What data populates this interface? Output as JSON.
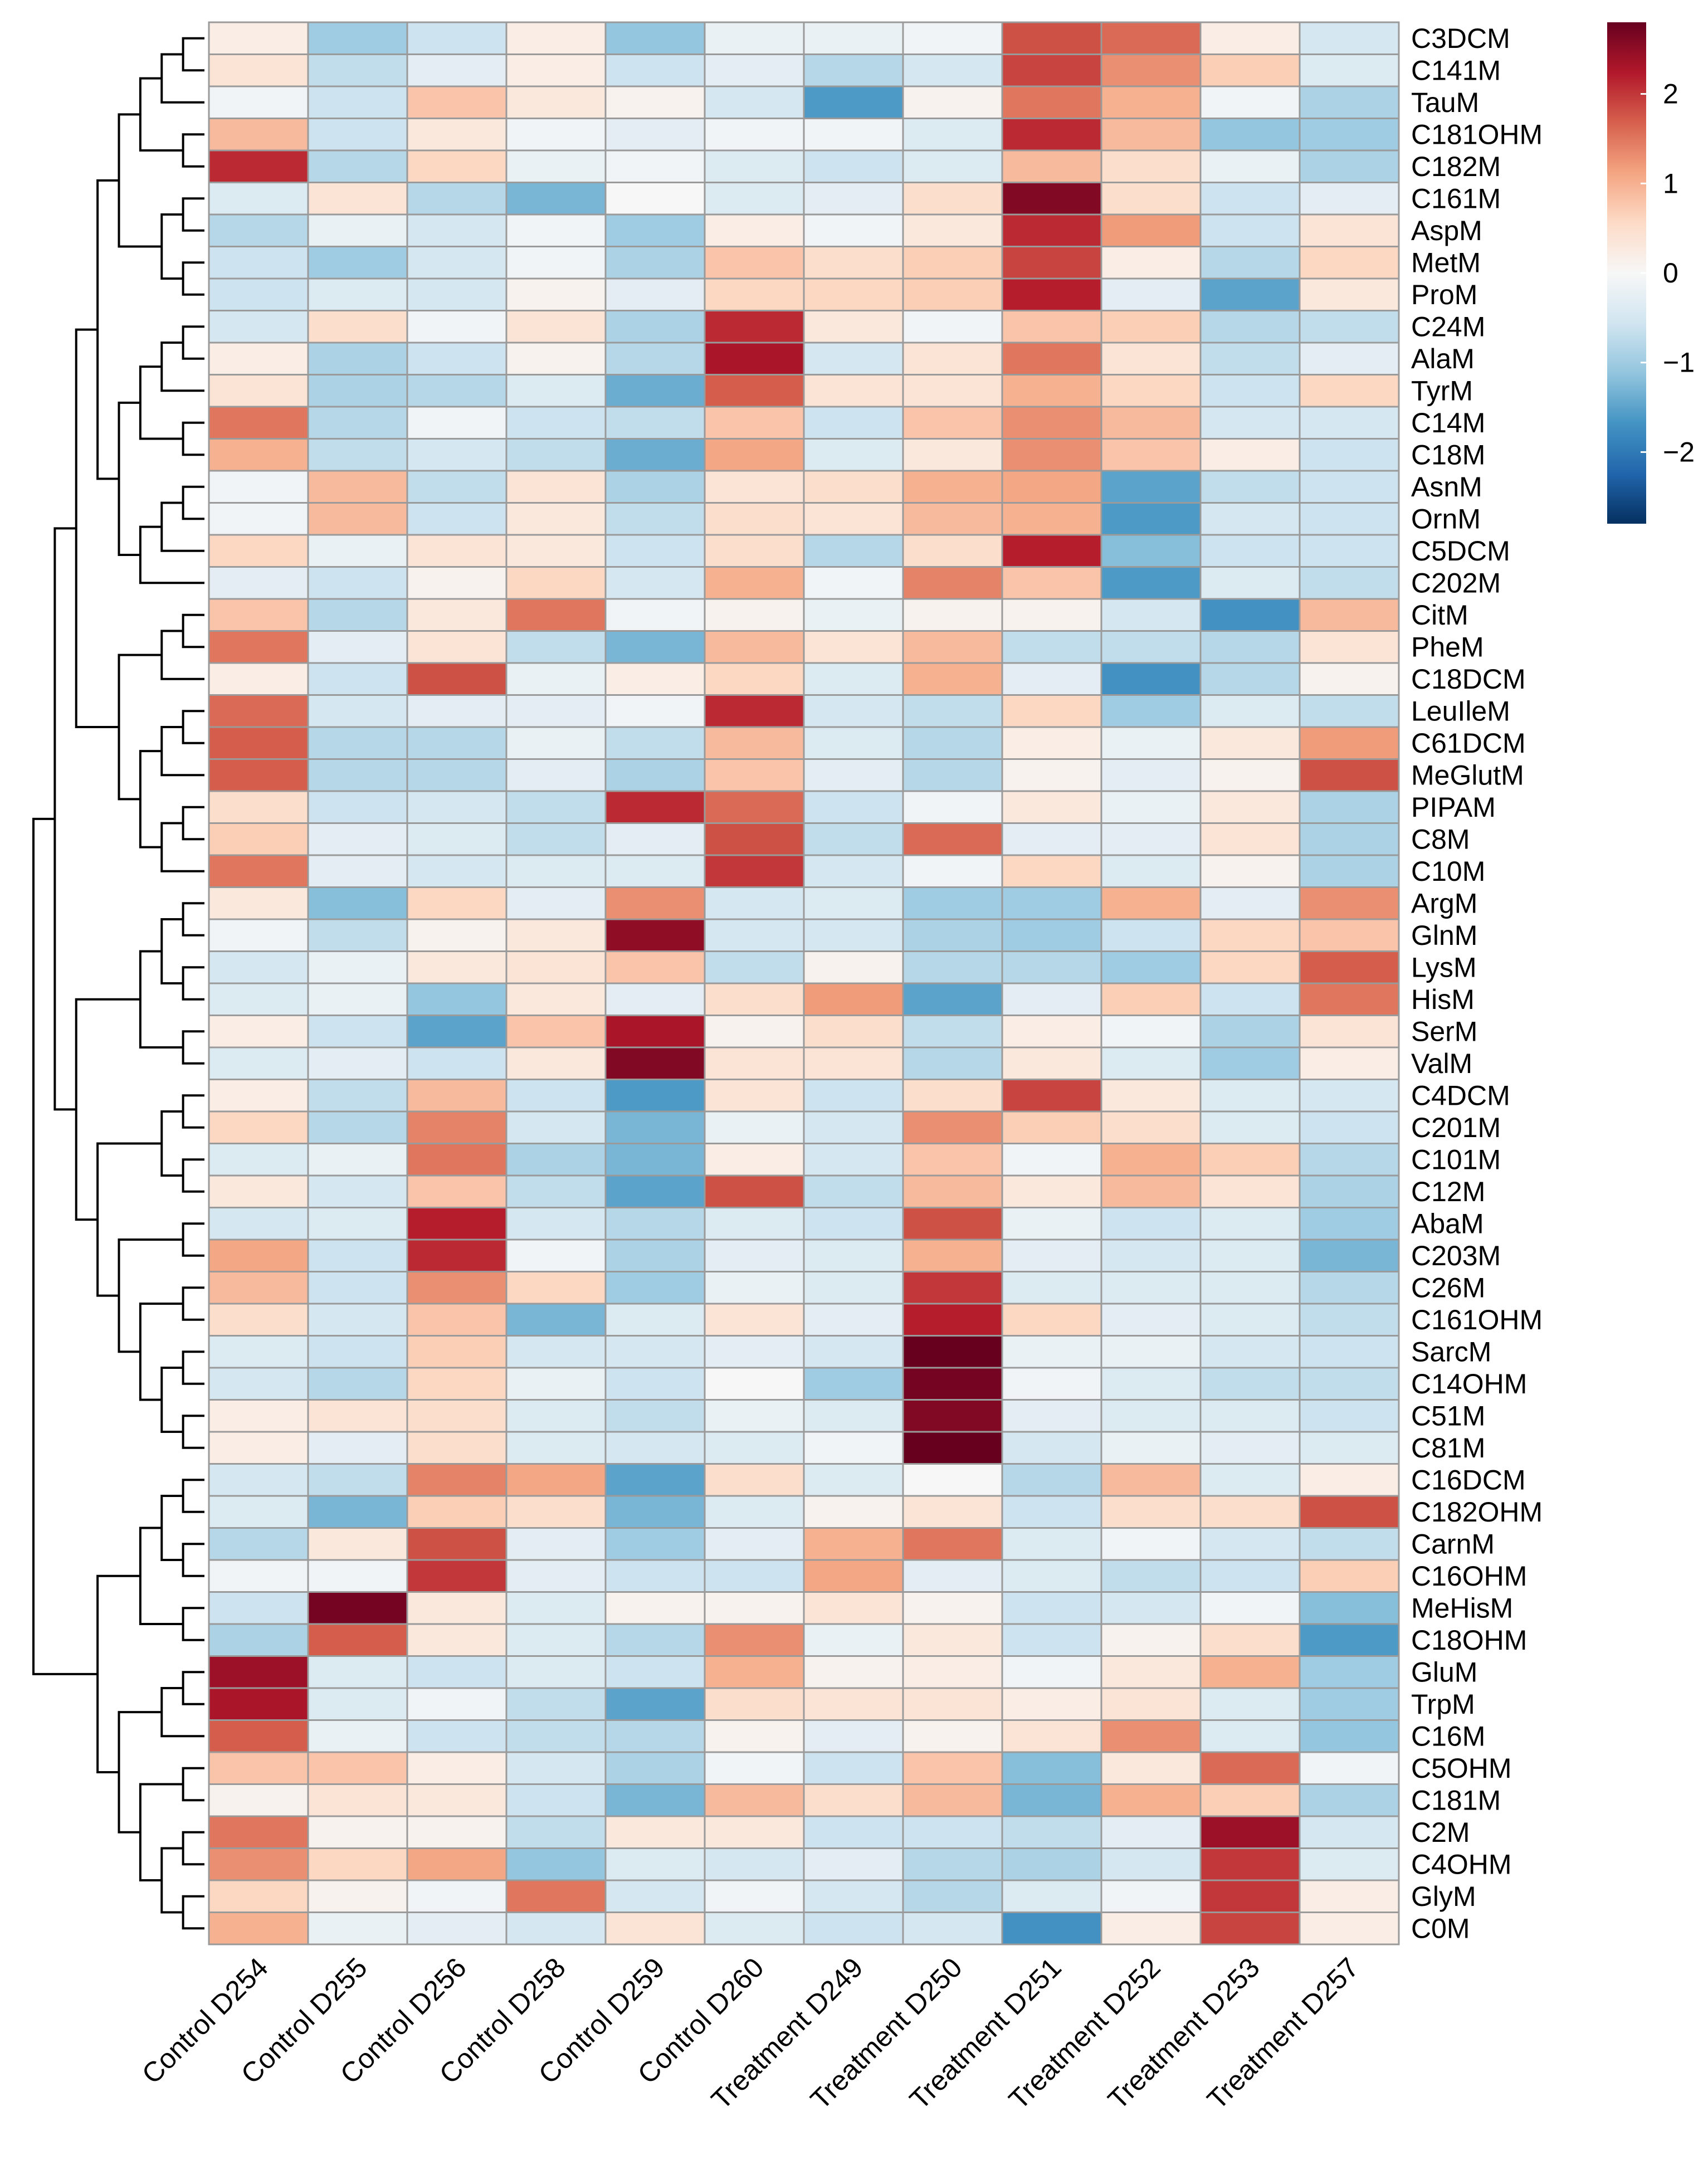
{
  "chart_data": {
    "type": "heatmap",
    "title": "",
    "xlabel": "",
    "ylabel": "",
    "columns": [
      "Control D254",
      "Control D255",
      "Control D256",
      "Control D258",
      "Control D259",
      "Control D260",
      "Treatment D249",
      "Treatment D250",
      "Treatment D251",
      "Treatment D252",
      "Treatment D253",
      "Treatment D257"
    ],
    "rows": [
      "C3DCM",
      "C141M",
      "TauM",
      "C181OHM",
      "C182M",
      "C161M",
      "AspM",
      "MetM",
      "ProM",
      "C24M",
      "AlaM",
      "TyrM",
      "C14M",
      "C18M",
      "AsnM",
      "OrnM",
      "C5DCM",
      "C202M",
      "CitM",
      "PheM",
      "C18DCM",
      "LeuIleM",
      "C61DCM",
      "MeGlutM",
      "PIPAM",
      "C8M",
      "C10M",
      "ArgM",
      "GlnM",
      "LysM",
      "HisM",
      "SerM",
      "ValM",
      "C4DCM",
      "C201M",
      "C101M",
      "C12M",
      "AbaM",
      "C203M",
      "C26M",
      "C161OHM",
      "SarcM",
      "C14OHM",
      "C51M",
      "C81M",
      "C16DCM",
      "C182OHM",
      "CarnM",
      "C16OHM",
      "MeHisM",
      "C18OHM",
      "GluM",
      "TrpM",
      "C16M",
      "C5OHM",
      "C181M",
      "C2M",
      "C4OHM",
      "GlyM",
      "C0M"
    ],
    "values": [
      [
        0.2,
        -1.0,
        -0.6,
        0.2,
        -1.1,
        -0.2,
        -0.2,
        -0.1,
        1.8,
        1.6,
        0.2,
        -0.5
      ],
      [
        0.4,
        -0.7,
        -0.3,
        0.2,
        -0.6,
        -0.3,
        -0.8,
        -0.5,
        1.9,
        1.3,
        0.7,
        -0.4
      ],
      [
        -0.1,
        -0.6,
        0.8,
        0.3,
        0.1,
        -0.5,
        -1.6,
        0.1,
        1.5,
        1.0,
        -0.1,
        -0.9
      ],
      [
        0.9,
        -0.6,
        0.3,
        -0.1,
        -0.3,
        -0.1,
        -0.1,
        -0.4,
        2.1,
        0.9,
        -1.1,
        -1.0
      ],
      [
        2.1,
        -0.8,
        0.6,
        -0.2,
        -0.1,
        -0.4,
        -0.6,
        -0.4,
        0.9,
        0.5,
        -0.2,
        -0.9
      ],
      [
        -0.4,
        0.4,
        -0.8,
        -1.3,
        0.0,
        -0.4,
        -0.3,
        0.5,
        2.6,
        0.5,
        -0.6,
        -0.3
      ],
      [
        -0.8,
        -0.2,
        -0.5,
        -0.1,
        -1.0,
        0.2,
        -0.1,
        0.3,
        2.1,
        1.2,
        -0.6,
        0.4
      ],
      [
        -0.6,
        -1.0,
        -0.5,
        -0.1,
        -0.9,
        0.8,
        0.5,
        0.7,
        1.9,
        0.2,
        -0.8,
        0.6
      ],
      [
        -0.6,
        -0.4,
        -0.5,
        0.1,
        -0.3,
        0.6,
        0.6,
        0.7,
        2.2,
        -0.3,
        -1.5,
        0.3
      ],
      [
        -0.5,
        0.5,
        -0.1,
        0.4,
        -0.9,
        2.1,
        0.3,
        -0.1,
        0.8,
        0.7,
        -0.8,
        -0.7
      ],
      [
        0.2,
        -0.9,
        -0.6,
        0.1,
        -0.8,
        2.3,
        -0.5,
        0.4,
        1.5,
        0.4,
        -0.7,
        -0.3
      ],
      [
        0.4,
        -0.9,
        -0.8,
        -0.4,
        -1.4,
        1.7,
        0.4,
        0.4,
        1.0,
        0.6,
        -0.6,
        0.6
      ],
      [
        1.5,
        -0.8,
        -0.1,
        -0.6,
        -0.7,
        0.8,
        -0.6,
        0.8,
        1.3,
        0.9,
        -0.5,
        -0.5
      ],
      [
        1.0,
        -0.7,
        -0.5,
        -0.7,
        -1.4,
        1.1,
        -0.4,
        0.3,
        1.3,
        0.8,
        0.2,
        -0.6
      ],
      [
        -0.1,
        0.9,
        -0.7,
        0.4,
        -0.9,
        0.4,
        0.5,
        1.0,
        1.1,
        -1.5,
        -0.7,
        -0.6
      ],
      [
        -0.1,
        0.9,
        -0.6,
        0.3,
        -0.7,
        0.5,
        0.4,
        0.9,
        1.0,
        -1.6,
        -0.5,
        -0.6
      ],
      [
        0.6,
        -0.2,
        0.4,
        0.3,
        -0.6,
        0.5,
        -0.8,
        0.5,
        2.2,
        -1.2,
        -0.6,
        -0.6
      ],
      [
        -0.3,
        -0.6,
        0.1,
        0.6,
        -0.5,
        1.0,
        -0.1,
        1.4,
        0.8,
        -1.6,
        -0.4,
        -0.7
      ],
      [
        0.8,
        -0.8,
        0.3,
        1.5,
        -0.1,
        0.1,
        -0.2,
        0.1,
        0.1,
        -0.5,
        -1.7,
        0.9
      ],
      [
        1.5,
        -0.3,
        0.4,
        -0.7,
        -1.3,
        0.9,
        0.4,
        0.9,
        -0.7,
        -0.7,
        -0.8,
        0.4
      ],
      [
        0.2,
        -0.6,
        1.8,
        -0.2,
        0.2,
        0.6,
        -0.4,
        1.0,
        -0.3,
        -1.7,
        -0.8,
        0.1
      ],
      [
        1.6,
        -0.5,
        -0.3,
        -0.3,
        -0.1,
        2.1,
        -0.5,
        -0.7,
        0.6,
        -1.0,
        -0.4,
        -0.7
      ],
      [
        1.7,
        -0.8,
        -0.8,
        -0.2,
        -0.7,
        0.9,
        -0.4,
        -0.8,
        0.2,
        -0.2,
        0.3,
        1.2
      ],
      [
        1.7,
        -0.8,
        -0.8,
        -0.3,
        -0.9,
        0.8,
        -0.3,
        -0.8,
        0.1,
        -0.3,
        0.1,
        1.8
      ],
      [
        0.5,
        -0.6,
        -0.5,
        -0.7,
        2.1,
        1.6,
        -0.6,
        -0.1,
        0.3,
        -0.2,
        0.3,
        -0.9
      ],
      [
        0.7,
        -0.3,
        -0.4,
        -0.7,
        -0.3,
        1.8,
        -0.7,
        1.6,
        -0.3,
        -0.3,
        0.4,
        -0.9
      ],
      [
        1.5,
        -0.3,
        -0.5,
        -0.4,
        -0.4,
        2.0,
        -0.5,
        -0.1,
        0.6,
        -0.4,
        0.1,
        -0.9
      ],
      [
        0.3,
        -1.2,
        0.6,
        -0.3,
        1.3,
        -0.5,
        -0.4,
        -1.0,
        -1.0,
        1.0,
        -0.3,
        1.3
      ],
      [
        -0.1,
        -0.7,
        0.1,
        0.3,
        2.5,
        -0.5,
        -0.5,
        -0.9,
        -1.0,
        -0.6,
        0.6,
        0.8
      ],
      [
        -0.5,
        -0.2,
        0.3,
        0.4,
        0.8,
        -0.7,
        0.1,
        -0.8,
        -0.8,
        -1.0,
        0.6,
        1.7
      ],
      [
        -0.4,
        -0.2,
        -1.1,
        0.3,
        -0.3,
        0.5,
        1.2,
        -1.5,
        -0.3,
        0.7,
        -0.6,
        1.5
      ],
      [
        0.2,
        -0.6,
        -1.5,
        0.8,
        2.3,
        0.1,
        0.5,
        -0.7,
        0.2,
        -0.1,
        -0.9,
        0.4
      ],
      [
        -0.4,
        -0.3,
        -0.6,
        0.3,
        2.6,
        0.4,
        0.4,
        -0.8,
        0.3,
        -0.4,
        -1.0,
        0.2
      ],
      [
        0.2,
        -0.7,
        0.9,
        -0.6,
        -1.6,
        0.4,
        -0.6,
        0.5,
        1.9,
        0.3,
        -0.4,
        -0.5
      ],
      [
        0.6,
        -0.8,
        1.4,
        -0.5,
        -1.3,
        -0.2,
        -0.5,
        1.3,
        0.7,
        0.5,
        -0.4,
        -0.6
      ],
      [
        -0.4,
        -0.2,
        1.5,
        -0.9,
        -1.3,
        0.2,
        -0.5,
        0.8,
        -0.1,
        1.0,
        0.7,
        -0.8
      ],
      [
        0.3,
        -0.5,
        0.8,
        -0.7,
        -1.5,
        1.8,
        -0.7,
        0.9,
        0.3,
        0.9,
        0.4,
        -0.9
      ],
      [
        -0.5,
        -0.4,
        2.2,
        -0.5,
        -0.8,
        -0.4,
        -0.6,
        1.8,
        -0.2,
        -0.6,
        -0.4,
        -1.0
      ],
      [
        1.1,
        -0.6,
        2.1,
        -0.1,
        -0.9,
        -0.3,
        -0.4,
        1.0,
        -0.3,
        -0.5,
        -0.4,
        -1.3
      ],
      [
        0.9,
        -0.6,
        1.3,
        0.6,
        -1.0,
        -0.2,
        -0.4,
        2.0,
        -0.4,
        -0.4,
        -0.4,
        -0.8
      ],
      [
        0.5,
        -0.5,
        0.8,
        -1.3,
        -0.4,
        0.4,
        -0.3,
        2.2,
        0.6,
        -0.3,
        -0.4,
        -0.7
      ],
      [
        -0.4,
        -0.6,
        0.7,
        -0.5,
        -0.5,
        -0.3,
        -0.5,
        2.8,
        -0.2,
        -0.2,
        -0.5,
        -0.6
      ],
      [
        -0.5,
        -0.8,
        0.6,
        -0.2,
        -0.6,
        0.0,
        -1.0,
        2.7,
        -0.1,
        -0.4,
        -0.7,
        -0.7
      ],
      [
        0.2,
        0.4,
        0.5,
        -0.4,
        -0.7,
        -0.2,
        -0.4,
        2.6,
        -0.3,
        -0.4,
        -0.4,
        -0.6
      ],
      [
        0.2,
        -0.3,
        0.5,
        -0.4,
        -0.5,
        -0.4,
        -0.1,
        2.8,
        -0.5,
        -0.2,
        -0.3,
        -0.4
      ],
      [
        -0.5,
        -0.7,
        1.4,
        1.1,
        -1.5,
        0.5,
        -0.4,
        0.0,
        -0.8,
        0.9,
        -0.4,
        0.2
      ],
      [
        -0.4,
        -1.3,
        0.7,
        0.5,
        -1.3,
        -0.4,
        0.1,
        0.4,
        -0.6,
        0.5,
        0.5,
        1.8
      ],
      [
        -0.8,
        0.3,
        1.8,
        -0.3,
        -1.0,
        -0.3,
        1.0,
        1.5,
        -0.4,
        -0.1,
        -0.5,
        -0.7
      ],
      [
        -0.1,
        -0.1,
        2.0,
        -0.3,
        -0.6,
        -0.6,
        1.1,
        -0.3,
        -0.4,
        -0.7,
        -0.6,
        0.7
      ],
      [
        -0.6,
        2.7,
        0.3,
        -0.4,
        0.1,
        0.1,
        0.4,
        0.1,
        -0.6,
        -0.5,
        -0.1,
        -1.2
      ],
      [
        -0.9,
        1.7,
        0.3,
        -0.4,
        -0.8,
        1.3,
        -0.2,
        0.3,
        -0.6,
        0.1,
        0.5,
        -1.6
      ],
      [
        2.4,
        -0.4,
        -0.6,
        -0.4,
        -0.6,
        1.0,
        0.1,
        0.2,
        -0.1,
        0.3,
        1.0,
        -1.0
      ],
      [
        2.3,
        -0.4,
        -0.1,
        -0.7,
        -1.5,
        0.5,
        0.4,
        0.4,
        0.2,
        0.4,
        -0.4,
        -1.0
      ],
      [
        1.7,
        -0.2,
        -0.6,
        -0.7,
        -0.8,
        0.1,
        -0.3,
        0.1,
        0.4,
        1.3,
        -0.4,
        -1.1
      ],
      [
        0.8,
        0.8,
        0.2,
        -0.5,
        -0.9,
        -0.1,
        -0.6,
        0.8,
        -1.2,
        0.3,
        1.6,
        -0.1
      ],
      [
        0.1,
        0.4,
        0.3,
        -0.6,
        -1.3,
        0.9,
        0.5,
        0.9,
        -1.3,
        1.0,
        0.7,
        -0.9
      ],
      [
        1.5,
        0.1,
        0.1,
        -0.7,
        0.3,
        0.3,
        -0.6,
        -0.6,
        -0.7,
        -0.3,
        2.4,
        -0.5
      ],
      [
        1.3,
        0.6,
        1.1,
        -1.1,
        -0.4,
        -0.5,
        -0.3,
        -0.8,
        -0.9,
        -0.5,
        2.0,
        -0.4
      ],
      [
        0.6,
        0.1,
        -0.1,
        1.5,
        -0.5,
        -0.1,
        -0.5,
        -0.8,
        -0.4,
        -0.1,
        2.0,
        0.2
      ],
      [
        1.0,
        -0.2,
        -0.3,
        -0.5,
        0.4,
        -0.4,
        -0.6,
        -0.5,
        -1.7,
        0.2,
        1.9,
        0.2
      ]
    ],
    "color_scale": {
      "min": -2.8,
      "max": 2.8,
      "colors": [
        "#053061",
        "#2166ac",
        "#4393c3",
        "#92c5de",
        "#d1e5f0",
        "#f7f7f7",
        "#fddbc7",
        "#f4a582",
        "#d6604d",
        "#b2182b",
        "#67001f"
      ]
    },
    "legend": {
      "ticks": [
        2,
        1,
        0,
        -1,
        -2
      ],
      "tick_labels": [
        "2",
        "1",
        "0",
        "−1",
        "−2"
      ],
      "placement": "top-right"
    },
    "grid": true,
    "cell_border_color": "#9a9a9a",
    "dendrogram_color": "#000000"
  }
}
